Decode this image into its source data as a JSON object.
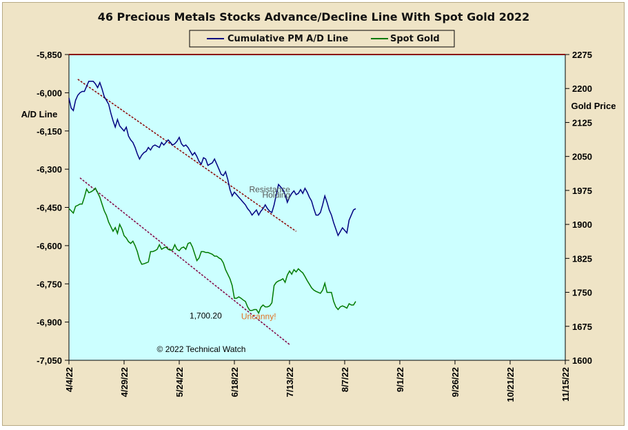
{
  "chart_data": {
    "type": "line",
    "title": "46 Precious Metals Stocks Advance/Decline Line With Spot Gold 2022",
    "ylabel_left": "A/D Line",
    "ylabel_right": "Gold Price",
    "ylim_left": [
      -7050,
      -5850
    ],
    "ylim_right": [
      1600,
      2275
    ],
    "left_ticks": [
      "-5,850",
      "-6,000",
      "-6,150",
      "-6,300",
      "-6,450",
      "-6,600",
      "-6,750",
      "-6,900",
      "-7,050"
    ],
    "right_ticks": [
      "2275",
      "2200",
      "2125",
      "2050",
      "1975",
      "1900",
      "1825",
      "1750",
      "1675",
      "1600"
    ],
    "x_ticks": [
      "4/4/22",
      "4/29/22",
      "5/24/22",
      "6/18/22",
      "7/13/22",
      "8/7/22",
      "9/1/22",
      "9/26/22",
      "10/21/22",
      "11/15/22"
    ],
    "legend": {
      "placement": "top-center"
    },
    "colors": {
      "ad_line": "#000080",
      "gold": "#007a00",
      "plot_bg": "#ccffff",
      "frame_bg": "#efe4c6",
      "trend": "#8b0000",
      "ann_text": "#555555",
      "uncanny": "#e07020"
    },
    "series": [
      {
        "name": "Cumulative PM A/D Line",
        "axis": "left",
        "points": [
          [
            0,
            -6020
          ],
          [
            1,
            -6060
          ],
          [
            2,
            -6070
          ],
          [
            3,
            -6030
          ],
          [
            4,
            -6010
          ],
          [
            5,
            -6000
          ],
          [
            6,
            -5995
          ],
          [
            7,
            -5995
          ],
          [
            8,
            -5975
          ],
          [
            9,
            -5955
          ],
          [
            10,
            -5955
          ],
          [
            11,
            -5955
          ],
          [
            12,
            -5965
          ],
          [
            13,
            -5980
          ],
          [
            14,
            -5960
          ],
          [
            15,
            -5985
          ],
          [
            16,
            -6015
          ],
          [
            17,
            -6030
          ],
          [
            18,
            -6045
          ],
          [
            19,
            -6080
          ],
          [
            20,
            -6110
          ],
          [
            21,
            -6135
          ],
          [
            22,
            -6105
          ],
          [
            23,
            -6130
          ],
          [
            24,
            -6140
          ],
          [
            25,
            -6150
          ],
          [
            26,
            -6135
          ],
          [
            27,
            -6170
          ],
          [
            28,
            -6185
          ],
          [
            29,
            -6195
          ],
          [
            30,
            -6215
          ],
          [
            31,
            -6240
          ],
          [
            32,
            -6260
          ],
          [
            33,
            -6245
          ],
          [
            34,
            -6235
          ],
          [
            35,
            -6230
          ],
          [
            36,
            -6215
          ],
          [
            37,
            -6225
          ],
          [
            38,
            -6210
          ],
          [
            39,
            -6205
          ],
          [
            40,
            -6210
          ],
          [
            41,
            -6215
          ],
          [
            42,
            -6195
          ],
          [
            43,
            -6205
          ],
          [
            44,
            -6195
          ],
          [
            45,
            -6185
          ],
          [
            46,
            -6195
          ],
          [
            47,
            -6205
          ],
          [
            48,
            -6200
          ],
          [
            49,
            -6190
          ],
          [
            50,
            -6175
          ],
          [
            51,
            -6200
          ],
          [
            52,
            -6210
          ],
          [
            53,
            -6205
          ],
          [
            54,
            -6215
          ],
          [
            55,
            -6230
          ],
          [
            56,
            -6245
          ],
          [
            57,
            -6235
          ],
          [
            58,
            -6250
          ],
          [
            59,
            -6270
          ],
          [
            60,
            -6280
          ],
          [
            61,
            -6255
          ],
          [
            62,
            -6260
          ],
          [
            63,
            -6285
          ],
          [
            64,
            -6280
          ],
          [
            65,
            -6275
          ],
          [
            66,
            -6260
          ],
          [
            67,
            -6280
          ],
          [
            68,
            -6300
          ],
          [
            69,
            -6320
          ],
          [
            70,
            -6325
          ],
          [
            71,
            -6310
          ],
          [
            72,
            -6340
          ],
          [
            73,
            -6380
          ],
          [
            74,
            -6405
          ],
          [
            75,
            -6390
          ],
          [
            76,
            -6400
          ],
          [
            77,
            -6410
          ],
          [
            78,
            -6420
          ],
          [
            79,
            -6430
          ],
          [
            80,
            -6440
          ],
          [
            81,
            -6455
          ],
          [
            82,
            -6465
          ],
          [
            83,
            -6480
          ],
          [
            84,
            -6470
          ],
          [
            85,
            -6460
          ],
          [
            86,
            -6480
          ],
          [
            87,
            -6465
          ],
          [
            88,
            -6455
          ],
          [
            89,
            -6440
          ],
          [
            90,
            -6455
          ],
          [
            91,
            -6465
          ],
          [
            92,
            -6470
          ],
          [
            93,
            -6440
          ],
          [
            94,
            -6400
          ],
          [
            95,
            -6360
          ],
          [
            96,
            -6370
          ],
          [
            97,
            -6380
          ],
          [
            98,
            -6400
          ],
          [
            99,
            -6430
          ],
          [
            100,
            -6410
          ],
          [
            101,
            -6395
          ],
          [
            102,
            -6385
          ],
          [
            103,
            -6400
          ],
          [
            104,
            -6395
          ],
          [
            105,
            -6380
          ],
          [
            106,
            -6395
          ],
          [
            107,
            -6375
          ],
          [
            108,
            -6390
          ],
          [
            109,
            -6410
          ],
          [
            110,
            -6425
          ],
          [
            111,
            -6455
          ],
          [
            112,
            -6480
          ],
          [
            113,
            -6480
          ],
          [
            114,
            -6470
          ],
          [
            115,
            -6440
          ],
          [
            116,
            -6405
          ],
          [
            117,
            -6430
          ],
          [
            118,
            -6460
          ],
          [
            119,
            -6480
          ],
          [
            120,
            -6510
          ],
          [
            121,
            -6535
          ],
          [
            122,
            -6560
          ],
          [
            123,
            -6545
          ],
          [
            124,
            -6530
          ],
          [
            125,
            -6540
          ],
          [
            126,
            -6550
          ],
          [
            127,
            -6500
          ],
          [
            128,
            -6480
          ],
          [
            129,
            -6460
          ],
          [
            130,
            -6455
          ]
        ]
      },
      {
        "name": "Spot Gold",
        "axis": "right",
        "points": [
          [
            0,
            1935
          ],
          [
            1,
            1930
          ],
          [
            2,
            1925
          ],
          [
            3,
            1940
          ],
          [
            4,
            1942
          ],
          [
            5,
            1945
          ],
          [
            6,
            1945
          ],
          [
            7,
            1960
          ],
          [
            8,
            1978
          ],
          [
            9,
            1970
          ],
          [
            10,
            1972
          ],
          [
            11,
            1975
          ],
          [
            12,
            1980
          ],
          [
            13,
            1970
          ],
          [
            14,
            1960
          ],
          [
            15,
            1945
          ],
          [
            16,
            1930
          ],
          [
            17,
            1920
          ],
          [
            18,
            1905
          ],
          [
            19,
            1895
          ],
          [
            20,
            1885
          ],
          [
            21,
            1893
          ],
          [
            22,
            1880
          ],
          [
            23,
            1900
          ],
          [
            24,
            1890
          ],
          [
            25,
            1875
          ],
          [
            26,
            1870
          ],
          [
            27,
            1862
          ],
          [
            28,
            1858
          ],
          [
            29,
            1863
          ],
          [
            30,
            1853
          ],
          [
            31,
            1840
          ],
          [
            32,
            1822
          ],
          [
            33,
            1812
          ],
          [
            34,
            1813
          ],
          [
            35,
            1815
          ],
          [
            36,
            1817
          ],
          [
            37,
            1840
          ],
          [
            38,
            1840
          ],
          [
            39,
            1842
          ],
          [
            40,
            1845
          ],
          [
            41,
            1855
          ],
          [
            42,
            1845
          ],
          [
            43,
            1848
          ],
          [
            44,
            1850
          ],
          [
            45,
            1845
          ],
          [
            46,
            1843
          ],
          [
            47,
            1844
          ],
          [
            48,
            1855
          ],
          [
            49,
            1845
          ],
          [
            50,
            1842
          ],
          [
            51,
            1848
          ],
          [
            52,
            1850
          ],
          [
            53,
            1845
          ],
          [
            54,
            1858
          ],
          [
            55,
            1860
          ],
          [
            56,
            1850
          ],
          [
            57,
            1835
          ],
          [
            58,
            1820
          ],
          [
            59,
            1826
          ],
          [
            60,
            1840
          ],
          [
            61,
            1840
          ],
          [
            62,
            1838
          ],
          [
            63,
            1838
          ],
          [
            64,
            1836
          ],
          [
            65,
            1834
          ],
          [
            66,
            1830
          ],
          [
            67,
            1830
          ],
          [
            68,
            1826
          ],
          [
            69,
            1823
          ],
          [
            70,
            1815
          ],
          [
            71,
            1800
          ],
          [
            72,
            1790
          ],
          [
            73,
            1780
          ],
          [
            74,
            1765
          ],
          [
            75,
            1737
          ],
          [
            76,
            1737
          ],
          [
            77,
            1740
          ],
          [
            78,
            1737
          ],
          [
            79,
            1733
          ],
          [
            80,
            1730
          ],
          [
            81,
            1718
          ],
          [
            82,
            1710
          ],
          [
            83,
            1710
          ],
          [
            84,
            1712
          ],
          [
            85,
            1712
          ],
          [
            86,
            1704
          ],
          [
            87,
            1717
          ],
          [
            88,
            1722
          ],
          [
            89,
            1718
          ],
          [
            90,
            1718
          ],
          [
            91,
            1720
          ],
          [
            92,
            1727
          ],
          [
            93,
            1765
          ],
          [
            94,
            1772
          ],
          [
            95,
            1775
          ],
          [
            96,
            1777
          ],
          [
            97,
            1780
          ],
          [
            98,
            1772
          ],
          [
            99,
            1788
          ],
          [
            100,
            1797
          ],
          [
            101,
            1790
          ],
          [
            102,
            1800
          ],
          [
            103,
            1795
          ],
          [
            104,
            1802
          ],
          [
            105,
            1797
          ],
          [
            106,
            1793
          ],
          [
            107,
            1785
          ],
          [
            108,
            1776
          ],
          [
            109,
            1768
          ],
          [
            110,
            1760
          ],
          [
            111,
            1755
          ],
          [
            112,
            1752
          ],
          [
            113,
            1750
          ],
          [
            114,
            1748
          ],
          [
            115,
            1755
          ],
          [
            116,
            1770
          ],
          [
            117,
            1750
          ],
          [
            118,
            1750
          ],
          [
            119,
            1750
          ],
          [
            120,
            1730
          ],
          [
            121,
            1718
          ],
          [
            122,
            1712
          ],
          [
            123,
            1718
          ],
          [
            124,
            1720
          ],
          [
            125,
            1718
          ],
          [
            126,
            1715
          ],
          [
            127,
            1725
          ],
          [
            128,
            1722
          ],
          [
            129,
            1722
          ],
          [
            130,
            1730
          ]
        ]
      }
    ],
    "trendlines": [
      {
        "axis": "left",
        "from": [
          4,
          -5947
        ],
        "to": [
          103,
          -6544
        ],
        "style": "dashed"
      },
      {
        "axis": "left",
        "from": [
          5,
          -6334
        ],
        "to": [
          100,
          -6988
        ],
        "style": "dashed"
      }
    ],
    "annotations": [
      {
        "text": "Resistance",
        "x": 91,
        "y": -6390,
        "axis": "left",
        "color": "#555555"
      },
      {
        "text": "Holding",
        "x": 94,
        "y": -6412,
        "axis": "left",
        "color": "#555555"
      },
      {
        "text": "1,700.20",
        "x": 62,
        "y": 1692,
        "axis": "right",
        "color": "#000000"
      },
      {
        "text": "Uncanny!",
        "x": 86,
        "y": 1691,
        "axis": "right",
        "color": "#e07020"
      },
      {
        "text": "© 2022 Technical Watch",
        "x": 60,
        "y": -7018,
        "axis": "left",
        "color": "#000000"
      }
    ]
  }
}
